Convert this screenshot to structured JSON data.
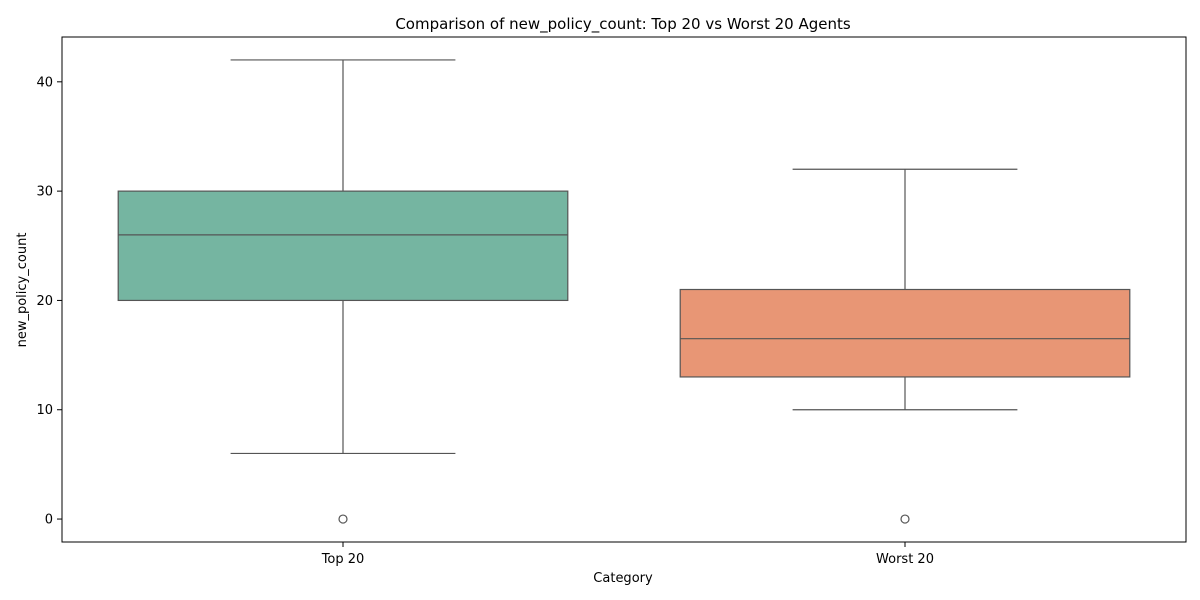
{
  "chart_data": {
    "type": "box",
    "title": "Comparison of new_policy_count: Top 20 vs Worst 20 Agents",
    "xlabel": "Category",
    "ylabel": "new_policy_count",
    "categories": [
      "Top 20",
      "Worst 20"
    ],
    "ylim": [
      -2.1,
      44.1
    ],
    "yticks": [
      0,
      10,
      20,
      30,
      40
    ],
    "grid": false,
    "boxes": [
      {
        "category": "Top 20",
        "whisker_low": 6,
        "q1": 20,
        "median": 26,
        "q3": 30,
        "whisker_high": 42,
        "outliers": [
          0
        ],
        "color": "#75b5a1"
      },
      {
        "category": "Worst 20",
        "whisker_low": 10,
        "q1": 13,
        "median": 16.5,
        "q3": 21,
        "whisker_high": 32,
        "outliers": [
          0
        ],
        "color": "#e89675"
      }
    ]
  }
}
